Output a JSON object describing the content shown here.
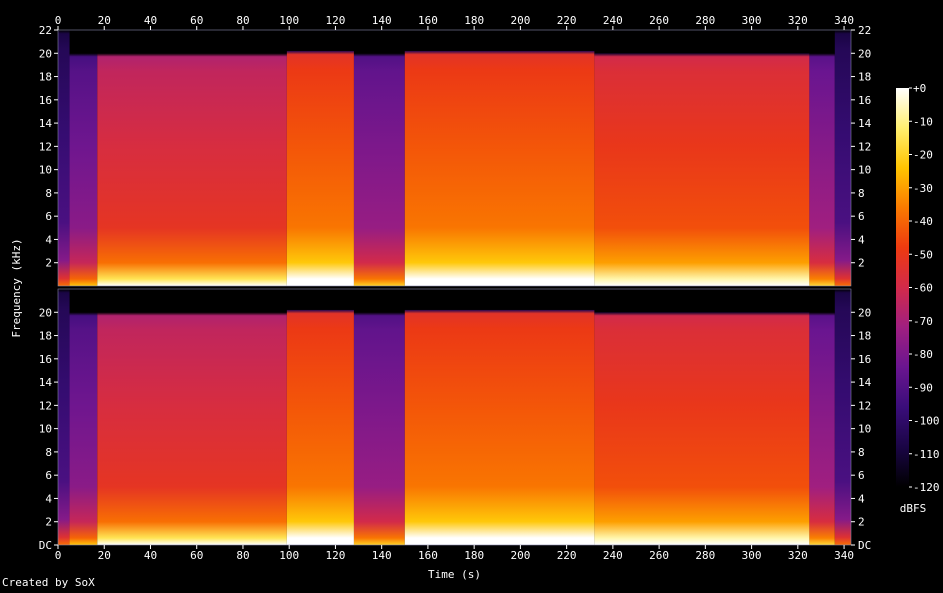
{
  "credit": "Created by SoX",
  "chart_data": {
    "type": "heatmap",
    "xlabel": "Time (s)",
    "ylabel": "Frequency (kHz)",
    "x_ticks": [
      0,
      20,
      40,
      60,
      80,
      100,
      120,
      140,
      160,
      180,
      200,
      220,
      240,
      260,
      280,
      300,
      320,
      340
    ],
    "xlim": [
      0,
      343
    ],
    "channels": [
      {
        "ylim": [
          0,
          22
        ],
        "y_ticks": [
          {
            "v": 2,
            "label": "2"
          },
          {
            "v": 4,
            "label": "4"
          },
          {
            "v": 6,
            "label": "6"
          },
          {
            "v": 8,
            "label": "8"
          },
          {
            "v": 10,
            "label": "10"
          },
          {
            "v": 12,
            "label": "12"
          },
          {
            "v": 14,
            "label": "14"
          },
          {
            "v": 16,
            "label": "16"
          },
          {
            "v": 18,
            "label": "18"
          },
          {
            "v": 20,
            "label": "20"
          },
          {
            "v": 22,
            "label": "22"
          }
        ]
      },
      {
        "ylim": [
          0,
          22
        ],
        "y_ticks": [
          {
            "v": 0,
            "label": "DC"
          },
          {
            "v": 2,
            "label": "2"
          },
          {
            "v": 4,
            "label": "4"
          },
          {
            "v": 6,
            "label": "6"
          },
          {
            "v": 8,
            "label": "8"
          },
          {
            "v": 10,
            "label": "10"
          },
          {
            "v": 12,
            "label": "12"
          },
          {
            "v": 14,
            "label": "14"
          },
          {
            "v": 16,
            "label": "16"
          },
          {
            "v": 18,
            "label": "18"
          },
          {
            "v": 20,
            "label": "20"
          }
        ]
      }
    ],
    "colorbar": {
      "unit": "dBFS",
      "range": [
        -120,
        0
      ],
      "ticks": [
        {
          "v": 0,
          "label": "+0"
        },
        {
          "v": -10,
          "label": "-10"
        },
        {
          "v": -20,
          "label": "-20"
        },
        {
          "v": -30,
          "label": "-30"
        },
        {
          "v": -40,
          "label": "-40"
        },
        {
          "v": -50,
          "label": "-50"
        },
        {
          "v": -60,
          "label": "-60"
        },
        {
          "v": -70,
          "label": "-70"
        },
        {
          "v": -80,
          "label": "-80"
        },
        {
          "v": -90,
          "label": "-90"
        },
        {
          "v": -100,
          "label": "-100"
        },
        {
          "v": -110,
          "label": "-110"
        },
        {
          "v": -120,
          "label": "-120"
        }
      ],
      "stops": [
        "#000000",
        "#1a0545",
        "#3a0d7a",
        "#6a1590",
        "#a01f80",
        "#d22a4a",
        "#ee3a10",
        "#fa7a00",
        "#ffc400",
        "#fff070",
        "#ffffff"
      ]
    },
    "segments": [
      {
        "t0": 0,
        "t1": 5,
        "cutoff": 22,
        "level": -100
      },
      {
        "t0": 5,
        "t1": 17,
        "cutoff": 20,
        "level": -85
      },
      {
        "t0": 17,
        "t1": 99,
        "cutoff": 20,
        "level": -60
      },
      {
        "t0": 99,
        "t1": 128,
        "cutoff": 20.2,
        "level": -45
      },
      {
        "t0": 128,
        "t1": 150,
        "cutoff": 20,
        "level": -82
      },
      {
        "t0": 150,
        "t1": 232,
        "cutoff": 20.2,
        "level": -45
      },
      {
        "t0": 232,
        "t1": 325,
        "cutoff": 20,
        "level": -52
      },
      {
        "t0": 325,
        "t1": 336,
        "cutoff": 20,
        "level": -80
      },
      {
        "t0": 336,
        "t1": 343,
        "cutoff": 22,
        "level": -100
      }
    ]
  }
}
